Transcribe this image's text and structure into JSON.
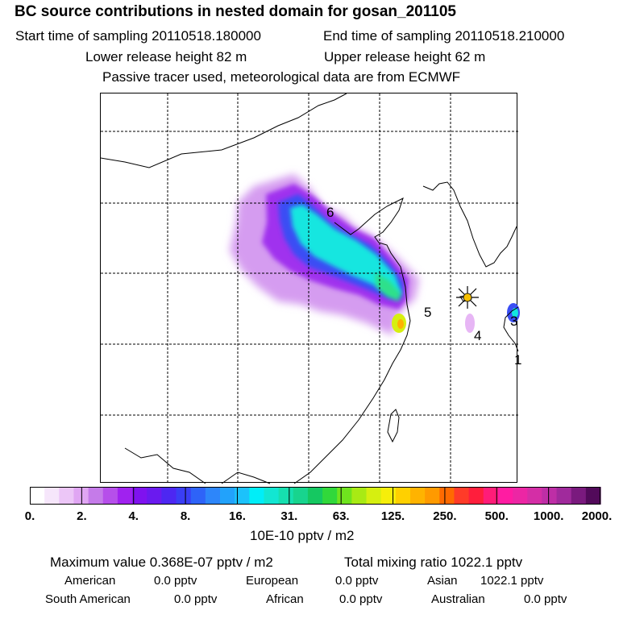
{
  "header": {
    "title": "BC  source contributions in nested domain for gosan_201105",
    "start_label": "Start time of sampling 20110518.180000",
    "end_label": "End time of sampling 20110518.210000",
    "lower_label": "Lower release height   82 m",
    "upper_label": "Upper release height   62 m",
    "info": "Passive tracer used, meteorological data are from ECMWF"
  },
  "map": {
    "labels": [
      {
        "text": "6",
        "id": "6"
      },
      {
        "text": "5",
        "id": "5"
      },
      {
        "text": "4",
        "id": "4"
      },
      {
        "text": "3",
        "id": "3"
      },
      {
        "text": "1",
        "id": "1"
      }
    ]
  },
  "colorbar": {
    "ticks": [
      "0.",
      "2.",
      "4.",
      "8.",
      "16.",
      "31.",
      "63.",
      "125.",
      "250.",
      "500.",
      "1000.",
      "2000."
    ],
    "colors": [
      "#ffffff",
      "#f6e6fb",
      "#ecc6f7",
      "#e0a6f3",
      "#c57be9",
      "#b64fea",
      "#a022ef",
      "#7f12ef",
      "#6a1aef",
      "#4d27f2",
      "#3a3ef5",
      "#2e63f8",
      "#2d86fa",
      "#22a2fb",
      "#1cc2fb",
      "#00eef8",
      "#12e6d2",
      "#16dfaf",
      "#18d48e",
      "#15c861",
      "#31d83b",
      "#6fe41e",
      "#a8ea14",
      "#d6ef10",
      "#f6ee0a",
      "#ffd000",
      "#ffb300",
      "#ff9a00",
      "#ff6a00",
      "#ff3b28",
      "#ff1e3c",
      "#ff1c78",
      "#ff1ca2",
      "#ec26a4",
      "#d42ea6",
      "#be2ea6",
      "#a02a9c",
      "#7a1a7e",
      "#520a5a"
    ],
    "unit_label": "10E-10 pptv / m2"
  },
  "footer": {
    "max_value": "Maximum value  0.368E-07 pptv / m2",
    "total_mixing": "Total mixing ratio     1022.1 pptv",
    "american": "American",
    "american_val": "0.0 pptv",
    "european": "European",
    "european_val": "0.0 pptv",
    "asian": "Asian",
    "asian_val": "1022.1 pptv",
    "south_american": "South American",
    "south_american_val": "0.0 pptv",
    "african": "African",
    "african_val": "0.0 pptv",
    "australian": "Australian",
    "australian_val": "0.0 pptv"
  }
}
